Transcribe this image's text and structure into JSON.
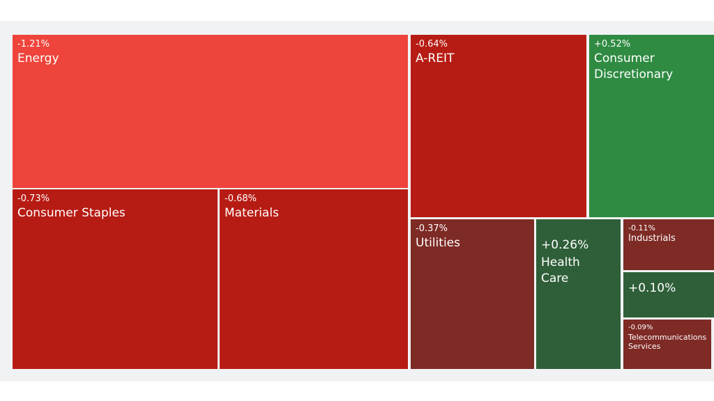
{
  "chart_data": {
    "type": "treemap",
    "items": [
      {
        "name": "Energy",
        "change": "-1.21%",
        "color": "#ee443b"
      },
      {
        "name": "A-REIT",
        "change": "-0.64%",
        "color": "#b71c14"
      },
      {
        "name": "Consumer Discretionary",
        "change": "+0.52%",
        "color": "#2f8b42"
      },
      {
        "name": "Consumer Staples",
        "change": "-0.73%",
        "color": "#b71c14"
      },
      {
        "name": "Materials",
        "change": "-0.68%",
        "color": "#b71c14"
      },
      {
        "name": "Utilities",
        "change": "-0.37%",
        "color": "#7e2a25"
      },
      {
        "name": "Health Care",
        "change": "+0.26%",
        "color": "#2f5f39"
      },
      {
        "name": "Industrials",
        "change": "-0.11%",
        "color": "#7e2a25"
      },
      {
        "name": "",
        "change": "+0.10%",
        "color": "#2f5f39"
      },
      {
        "name": "Telecommunications Services",
        "change": "-0.09%",
        "color": "#7e2a25"
      }
    ]
  }
}
